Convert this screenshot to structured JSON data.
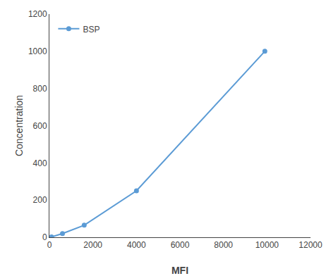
{
  "chart_data": {
    "type": "line",
    "x": [
      100,
      600,
      1600,
      4000,
      9900
    ],
    "series": [
      {
        "name": "BSP",
        "color": "#5B9BD5",
        "values": [
          2,
          20,
          65,
          250,
          1000
        ],
        "marker": "circle"
      }
    ],
    "xlabel": "MFI",
    "ylabel": "Concentration",
    "xlim": [
      0,
      12000
    ],
    "ylim": [
      0,
      1200
    ],
    "xticks": [
      0,
      2000,
      4000,
      6000,
      8000,
      10000,
      12000
    ],
    "yticks": [
      0,
      200,
      400,
      600,
      800,
      1000,
      1200
    ],
    "grid": false,
    "legend": "upper left"
  }
}
